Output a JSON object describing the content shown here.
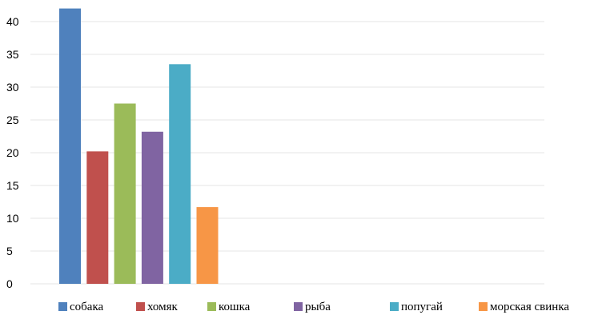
{
  "chart_data": {
    "type": "bar",
    "title": "",
    "xlabel": "",
    "ylabel": "",
    "ylim": [
      0,
      42
    ],
    "yticks": [
      0,
      5,
      10,
      15,
      20,
      25,
      30,
      35,
      40
    ],
    "grid": true,
    "legend_position": "bottom",
    "series": [
      {
        "name": "собака",
        "value": 42,
        "color": "#4F81BD"
      },
      {
        "name": "хомяк",
        "value": 20.2,
        "color": "#C0504D"
      },
      {
        "name": "кошка",
        "value": 27.5,
        "color": "#9BBB59"
      },
      {
        "name": "рыба",
        "value": 23.2,
        "color": "#8064A2"
      },
      {
        "name": "попугай",
        "value": 33.5,
        "color": "#4BACC6"
      },
      {
        "name": "морская свинка",
        "value": 11.7,
        "color": "#F79646"
      }
    ]
  }
}
